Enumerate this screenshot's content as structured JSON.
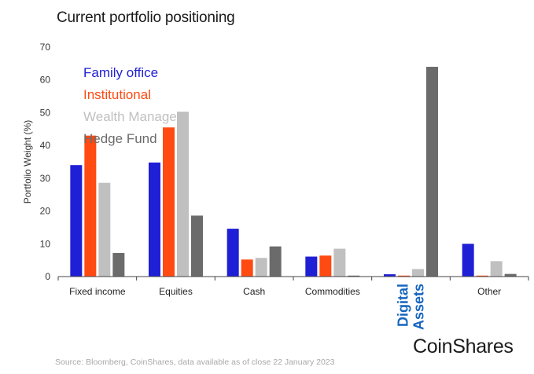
{
  "header": {
    "title": "Current portfolio positioning"
  },
  "footer": {
    "source": "Source: Bloomberg, CoinShares, data available as of close 22 January 2023",
    "logo_text": "CoinShares"
  },
  "colors": {
    "family_office": "#1f1fd6",
    "institutional": "#ff4a12",
    "wealth_manager": "#c0c0c0",
    "hedge_fund": "#6b6b6b",
    "highlight_category": "#1565c0"
  },
  "chart_data": {
    "type": "bar",
    "title": "Current portfolio positioning",
    "xlabel": "",
    "ylabel": "Portfolio Weight (%)",
    "ylim": [
      0,
      70
    ],
    "yticks": [
      0,
      10,
      20,
      30,
      40,
      50,
      60,
      70
    ],
    "grid": false,
    "legend_position": "top-left",
    "categories": [
      "Fixed income",
      "Equities",
      "Cash",
      "Commodities",
      "Digital Assets",
      "Other"
    ],
    "highlighted_category": "Digital Assets",
    "series": [
      {
        "name": "Family office",
        "color": "#1f1fd6",
        "values": [
          34,
          34.8,
          14.6,
          6.1,
          0.7,
          10
        ]
      },
      {
        "name": "Institutional",
        "color": "#ff4a12",
        "values": [
          43,
          45.5,
          5.2,
          6.4,
          0.3,
          0.3
        ]
      },
      {
        "name": "Wealth Manager",
        "color": "#c0c0c0",
        "values": [
          28.6,
          50.3,
          5.7,
          8.5,
          2.3,
          4.7
        ]
      },
      {
        "name": "Hedge Fund",
        "color": "#6b6b6b",
        "values": [
          7.2,
          18.6,
          9.2,
          0.3,
          64,
          0.8
        ]
      }
    ]
  }
}
